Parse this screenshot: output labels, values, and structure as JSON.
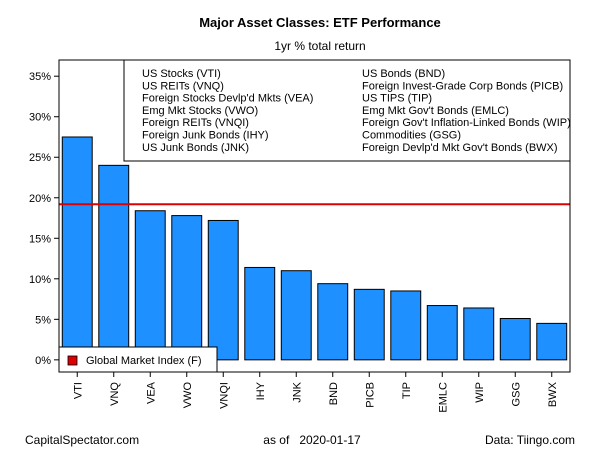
{
  "chart_data": {
    "type": "bar",
    "title": "Major Asset Classes: ETF Performance",
    "subtitle": "1yr % total return",
    "categories": [
      "VTI",
      "VNQ",
      "VEA",
      "VWO",
      "VNQI",
      "IHY",
      "JNK",
      "BND",
      "PICB",
      "TIP",
      "EMLC",
      "WIP",
      "GSG",
      "BWX"
    ],
    "values": [
      27.5,
      24.0,
      18.4,
      17.8,
      17.2,
      11.4,
      11.0,
      9.4,
      8.7,
      8.5,
      6.7,
      6.4,
      5.1,
      4.5
    ],
    "y_ticks": [
      "0%",
      "5%",
      "10%",
      "15%",
      "20%",
      "25%",
      "30%",
      "35%"
    ],
    "y_tick_values": [
      0,
      5,
      10,
      15,
      20,
      25,
      30,
      35
    ],
    "ylim": [
      -1.5,
      37
    ],
    "bar_color": "#1e90ff",
    "reference_line": {
      "label": "Global Market Index (F)",
      "value": 19.2,
      "color": "#dd0000"
    },
    "legend_entries": [
      "US Stocks (VTI)",
      "US REITs (VNQ)",
      "Foreign Stocks Devlp'd Mkts (VEA)",
      "Emg Mkt Stocks (VWO)",
      "Foreign REITs (VNQI)",
      "Foreign Junk Bonds (IHY)",
      "US Junk Bonds (JNK)",
      "US Bonds (BND)",
      "Foreign Invest-Grade Corp Bonds (PICB)",
      "US TIPS (TIP)",
      "Emg Mkt Gov't Bonds (EMLC)",
      "Foreign Gov't Inflation-Linked Bonds (WIP)",
      "Commodities (GSG)",
      "Foreign Devlp'd Mkt Gov't Bonds (BWX)"
    ],
    "legend_placement": "top-right",
    "grid": false
  },
  "footer": {
    "left": "CapitalSpectator.com",
    "center": "as of   2020-01-17",
    "right": "Data: Tiingo.com"
  }
}
